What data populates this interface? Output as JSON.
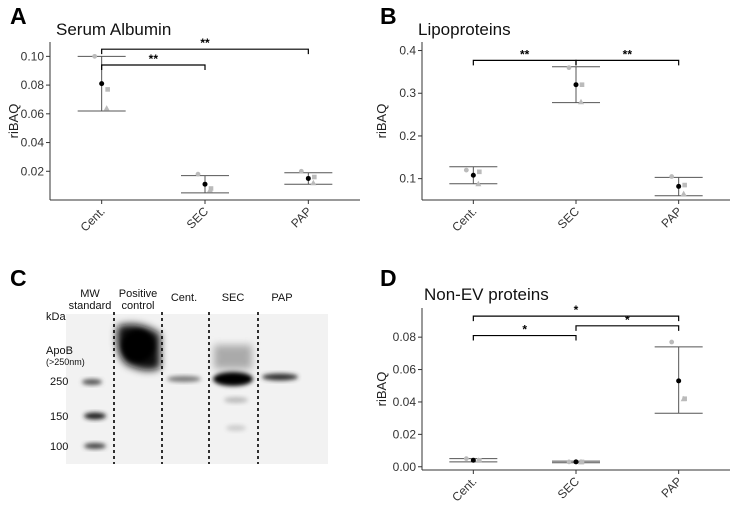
{
  "panels": {
    "A": {
      "letter": "A"
    },
    "B": {
      "letter": "B"
    },
    "C": {
      "letter": "C"
    },
    "D": {
      "letter": "D"
    }
  },
  "chart_data": [
    {
      "id": "A",
      "type": "scatter",
      "title": "Serum Albumin",
      "ylabel": "riBAQ",
      "categories": [
        "Cent.",
        "SEC",
        "PAP"
      ],
      "ylim": [
        0,
        0.11
      ],
      "yticks": [
        0.02,
        0.04,
        0.06,
        0.08,
        0.1
      ],
      "ytick_labels": [
        "0.02",
        "0.04",
        "0.06",
        "0.08",
        "0.10"
      ],
      "means": [
        0.081,
        0.011,
        0.015
      ],
      "err_low": [
        0.062,
        0.005,
        0.011
      ],
      "err_high": [
        0.1,
        0.017,
        0.019
      ],
      "points": [
        [
          0.1,
          0.077,
          0.064
        ],
        [
          0.018,
          0.008,
          0.007
        ],
        [
          0.02,
          0.016,
          0.012
        ]
      ],
      "brackets": [
        {
          "from": 0,
          "to": 1,
          "label": "**",
          "y": 0.094
        },
        {
          "from": 0,
          "to": 2,
          "label": "**",
          "y": 0.105
        }
      ]
    },
    {
      "id": "B",
      "type": "scatter",
      "title": "Lipoproteins",
      "ylabel": "riBAQ",
      "categories": [
        "Cent.",
        "SEC",
        "PAP"
      ],
      "ylim": [
        0.05,
        0.42
      ],
      "yticks": [
        0.1,
        0.2,
        0.3,
        0.4
      ],
      "ytick_labels": [
        "0.1",
        "0.2",
        "0.3",
        "0.4"
      ],
      "means": [
        0.108,
        0.32,
        0.082
      ],
      "err_low": [
        0.088,
        0.278,
        0.06
      ],
      "err_high": [
        0.128,
        0.362,
        0.103
      ],
      "points": [
        [
          0.12,
          0.116,
          0.088
        ],
        [
          0.36,
          0.32,
          0.28
        ],
        [
          0.105,
          0.085,
          0.065
        ]
      ],
      "brackets": [
        {
          "from": 0,
          "to": 1,
          "label": "**",
          "y": 0.377
        },
        {
          "from": 1,
          "to": 2,
          "label": "**",
          "y": 0.377
        }
      ]
    },
    {
      "id": "D",
      "type": "scatter",
      "title": "Non-EV proteins",
      "ylabel": "riBAQ",
      "categories": [
        "Cent.",
        "SEC",
        "PAP"
      ],
      "ylim": [
        -0.002,
        0.098
      ],
      "yticks": [
        0.0,
        0.02,
        0.04,
        0.06,
        0.08
      ],
      "ytick_labels": [
        "0.00",
        "0.02",
        "0.04",
        "0.06",
        "0.08"
      ],
      "means": [
        0.004,
        0.003,
        0.053
      ],
      "err_low": [
        0.003,
        0.0025,
        0.033
      ],
      "err_high": [
        0.005,
        0.0035,
        0.074
      ],
      "points": [
        [
          0.005,
          0.004,
          0.004
        ],
        [
          0.003,
          0.003,
          0.003
        ],
        [
          0.077,
          0.042,
          0.042
        ]
      ],
      "brackets": [
        {
          "from": 0,
          "to": 1,
          "label": "*",
          "y": 0.081
        },
        {
          "from": 1,
          "to": 2,
          "label": "*",
          "y": 0.087
        },
        {
          "from": 0,
          "to": 2,
          "label": "*",
          "y": 0.093
        }
      ]
    }
  ],
  "blot": {
    "lanes": [
      "MW standard",
      "Positive control",
      "Cent.",
      "SEC",
      "PAP"
    ],
    "lane1_l1": "MW",
    "lane1_l2": "standard",
    "lane2_l1": "Positive",
    "lane2_l2": "control",
    "lane3": "Cent.",
    "lane4": "SEC",
    "lane5": "PAP",
    "kda": "kDa",
    "apob": "ApoB",
    "apob_sub": "(>250nm)",
    "mw_250": "250",
    "mw_150": "150",
    "mw_100": "100"
  }
}
